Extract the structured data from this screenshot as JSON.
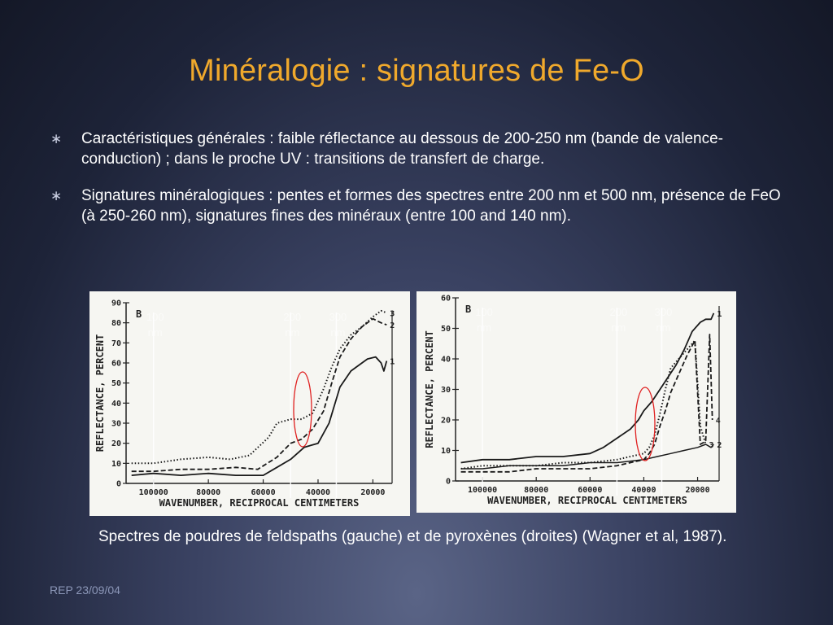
{
  "slide": {
    "title": "Minéralogie : signatures de Fe-O",
    "bullets": [
      {
        "icon": "asterisk-bullet-icon",
        "text": "Caractéristiques générales : faible réflectance au dessous de 200-250 nm (bande de valence-conduction) ; dans le proche UV : transitions de transfert de charge."
      },
      {
        "icon": "asterisk-bullet-icon",
        "text": "Signatures minéralogiques : pentes et formes des spectres entre 200 nm et 500 nm, présence de FeO (à 250-260 nm), signatures fines des minéraux (entre 100 and 140 nm)."
      }
    ],
    "caption": "Spectres de poudres de feldspaths (gauche) et de pyroxènes (droites) (Wagner et al, 1987).",
    "footer": "REP 23/09/04",
    "colors": {
      "title": "#f0a92c",
      "text": "#ffffff",
      "highlight_ellipse": "#e02020"
    }
  },
  "chart_data": [
    {
      "type": "line",
      "panel_label": "B",
      "xlabel": "WAVENUMBER, RECIPROCAL CENTIMETERS",
      "ylabel": "REFLECTANCE, PERCENT",
      "x_ticks": [
        "100000",
        "80000",
        "60000",
        "40000",
        "20000"
      ],
      "y_ticks": [
        "0",
        "10",
        "20",
        "30",
        "40",
        "50",
        "60",
        "70",
        "80",
        "90"
      ],
      "xlim": [
        110000,
        13000
      ],
      "ylim": [
        0,
        90
      ],
      "overlay_markers": [
        {
          "label": "100 nm",
          "x": 100000
        },
        {
          "label": "200 nm",
          "x": 50000
        },
        {
          "label": "300 nm",
          "x": 33333
        }
      ],
      "series": [
        {
          "name": "1",
          "style": "solid",
          "x": [
            108000,
            100000,
            90000,
            80000,
            70000,
            60000,
            55000,
            50000,
            45000,
            40000,
            36000,
            32000,
            28000,
            25000,
            22000,
            19000,
            17000,
            16000,
            15000
          ],
          "y": [
            4,
            5,
            4,
            5,
            4,
            4,
            8,
            12,
            18,
            20,
            30,
            48,
            56,
            59,
            62,
            63,
            60,
            56,
            61
          ]
        },
        {
          "name": "2",
          "style": "dashed",
          "x": [
            108000,
            100000,
            90000,
            80000,
            70000,
            62000,
            55000,
            50000,
            46000,
            42000,
            38000,
            35000,
            32000,
            28000,
            24000,
            20000,
            17000,
            15000
          ],
          "y": [
            6,
            6,
            7,
            7,
            8,
            7,
            13,
            20,
            22,
            27,
            36,
            50,
            63,
            72,
            78,
            82,
            80,
            79
          ]
        },
        {
          "name": "3",
          "style": "dotted",
          "x": [
            108000,
            100000,
            90000,
            80000,
            72000,
            65000,
            58000,
            55000,
            50000,
            46000,
            42000,
            38000,
            35000,
            32000,
            28000,
            24000,
            20000,
            17000,
            15000
          ],
          "y": [
            10,
            10,
            12,
            13,
            12,
            14,
            23,
            30,
            32,
            32,
            35,
            47,
            58,
            67,
            74,
            78,
            83,
            86,
            85
          ]
        }
      ]
    },
    {
      "type": "line",
      "panel_label": "B",
      "xlabel": "WAVENUMBER, RECIPROCAL CENTIMETERS",
      "ylabel": "REFLECTANCE, PERCENT",
      "x_ticks": [
        "100000",
        "80000",
        "60000",
        "40000",
        "20000"
      ],
      "y_ticks": [
        "0",
        "10",
        "20",
        "30",
        "40",
        "50",
        "60"
      ],
      "xlim": [
        110000,
        12000
      ],
      "ylim": [
        0,
        60
      ],
      "overlay_markers": [
        {
          "label": "100 nm",
          "x": 100000
        },
        {
          "label": "200 nm",
          "x": 50000
        },
        {
          "label": "300 nm",
          "x": 33333
        }
      ],
      "series": [
        {
          "name": "1",
          "style": "solid",
          "x": [
            108000,
            100000,
            90000,
            80000,
            70000,
            60000,
            55000,
            50000,
            45000,
            42000,
            40000,
            37000,
            34000,
            31000,
            28000,
            25000,
            22000,
            19000,
            17000,
            15000,
            14000
          ],
          "y": [
            6,
            7,
            7,
            8,
            8,
            9,
            11,
            14,
            17,
            20,
            23,
            26,
            30,
            34,
            38,
            43,
            49,
            52,
            53,
            53,
            55
          ]
        },
        {
          "name": "2",
          "style": "solid-thin",
          "x": [
            108000,
            100000,
            90000,
            80000,
            70000,
            60000,
            50000,
            40000,
            35000,
            30000,
            25000,
            20000,
            17000,
            15000,
            14000
          ],
          "y": [
            4,
            4,
            5,
            5,
            5,
            6,
            6,
            7,
            8,
            9,
            10,
            11,
            12,
            11,
            12
          ]
        },
        {
          "name": "3",
          "style": "dotted",
          "x": [
            108000,
            100000,
            90000,
            80000,
            70000,
            60000,
            50000,
            45000,
            40000,
            38000,
            36000,
            34000,
            32000,
            30000,
            27000,
            24000,
            21000,
            19000,
            17000
          ],
          "y": [
            4,
            5,
            5,
            5,
            6,
            6,
            7,
            8,
            9,
            11,
            15,
            22,
            30,
            37,
            40,
            43,
            46,
            18,
            12
          ]
        },
        {
          "name": "4",
          "style": "dashed",
          "x": [
            108000,
            100000,
            90000,
            80000,
            70000,
            60000,
            50000,
            45000,
            40000,
            38000,
            36000,
            34000,
            32000,
            30000,
            27000,
            24000,
            21000,
            19000,
            17000,
            15500,
            14500
          ],
          "y": [
            3,
            3,
            3,
            4,
            4,
            4,
            5,
            6,
            7,
            9,
            12,
            18,
            23,
            29,
            35,
            41,
            46,
            12,
            13,
            48,
            20
          ]
        }
      ]
    }
  ]
}
